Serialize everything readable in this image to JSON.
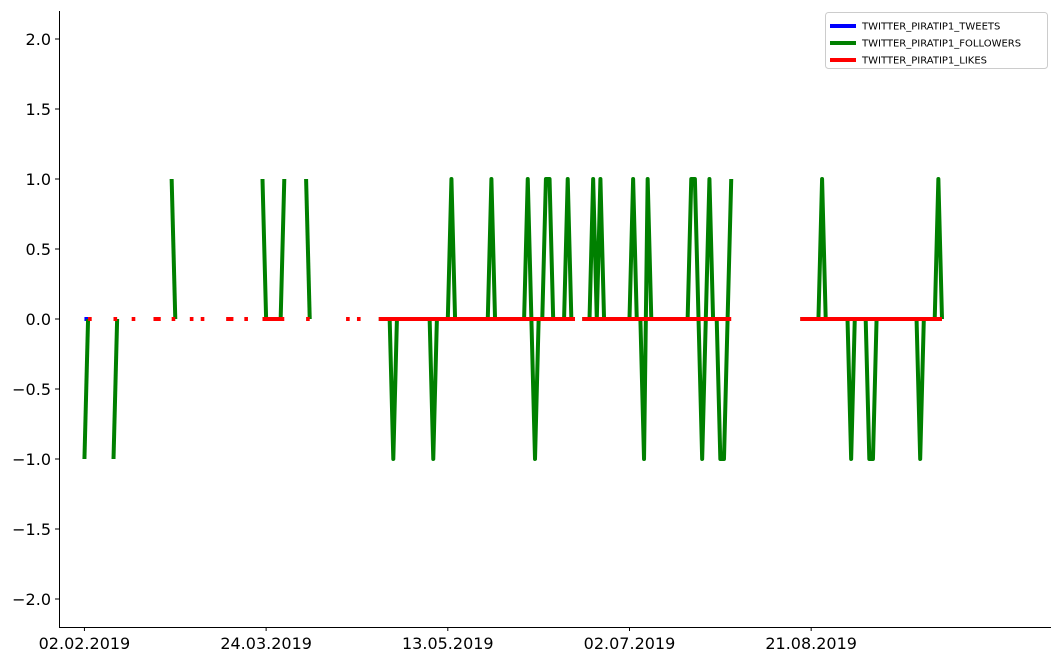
{
  "chart_data": {
    "type": "line",
    "title": "",
    "xlabel": "",
    "ylabel": "",
    "x_start": "2019-02-02",
    "x_end": "2019-09-30",
    "xlim": [
      "2019-01-26",
      "2019-10-26"
    ],
    "ylim": [
      -2.2,
      2.2
    ],
    "grid": false,
    "legend_position": "top-right",
    "x_ticks": [
      {
        "date": "2019-02-02",
        "label": "02.02.2019"
      },
      {
        "date": "2019-03-24",
        "label": "24.03.2019"
      },
      {
        "date": "2019-05-13",
        "label": "13.05.2019"
      },
      {
        "date": "2019-07-02",
        "label": "02.07.2019"
      },
      {
        "date": "2019-08-21",
        "label": "21.08.2019"
      }
    ],
    "y_ticks": [
      {
        "value": 2.0,
        "label": "2.0"
      },
      {
        "value": 1.5,
        "label": "1.5"
      },
      {
        "value": 1.0,
        "label": "1.0"
      },
      {
        "value": 0.5,
        "label": "0.5"
      },
      {
        "value": 0.0,
        "label": "0.0"
      },
      {
        "value": -0.5,
        "label": "−0.5"
      },
      {
        "value": -1.0,
        "label": "−1.0"
      },
      {
        "value": -1.5,
        "label": "−1.5"
      },
      {
        "value": -2.0,
        "label": "−2.0"
      }
    ],
    "series": [
      {
        "name": "TWITTER_PIRATIP1_TWEETS",
        "color": "#0000ff",
        "values": {
          "0": 0,
          "1": 0
        }
      },
      {
        "name": "TWITTER_PIRATIP1_FOLLOWERS",
        "color": "#008000",
        "values": {
          "0": -1,
          "1": 0,
          "8": -1,
          "9": 0,
          "24": 1,
          "25": 0,
          "49": 1,
          "50": 0,
          "51": 0,
          "52": 0,
          "53": 0,
          "54": 0,
          "55": 1,
          "61": 1,
          "62": 0,
          "81": 0,
          "82": 0,
          "83": 0,
          "84": 0,
          "85": -1,
          "86": 0,
          "87": 0,
          "88": 0,
          "89": 0,
          "90": 0,
          "91": 0,
          "92": 0,
          "93": 0,
          "94": 0,
          "95": 0,
          "96": -1,
          "97": 0,
          "98": 0,
          "99": 0,
          "100": 0,
          "101": 1,
          "102": 0,
          "103": 0,
          "104": 0,
          "105": 0,
          "106": 0,
          "107": 0,
          "108": 0,
          "109": 0,
          "110": 0,
          "111": 0,
          "112": 1,
          "113": 0,
          "114": 0,
          "115": 0,
          "116": 0,
          "117": 0,
          "118": 0,
          "119": 0,
          "120": 0,
          "121": 0,
          "122": 1,
          "123": 0,
          "124": -1,
          "125": 0,
          "126": 0,
          "127": 1,
          "128": 1,
          "129": 0,
          "130": 0,
          "131": 0,
          "132": 0,
          "133": 1,
          "134": 0,
          "135": 0,
          "137": 0,
          "138": 0,
          "139": 0,
          "140": 1,
          "141": 0,
          "142": 1,
          "143": 0,
          "144": 0,
          "145": 0,
          "146": 0,
          "147": 0,
          "148": 0,
          "149": 0,
          "150": 0,
          "151": 1,
          "152": 0,
          "153": 0,
          "154": -1,
          "155": 1,
          "156": 0,
          "157": 0,
          "158": 0,
          "159": 0,
          "160": 0,
          "161": 0,
          "162": 0,
          "163": 0,
          "164": 0,
          "165": 0,
          "166": 0,
          "167": 1,
          "168": 1,
          "169": 0,
          "170": -1,
          "171": 0,
          "172": 1,
          "173": 0,
          "174": 0,
          "175": -1,
          "176": -1,
          "177": 0,
          "178": 1,
          "197": 0,
          "198": 0,
          "199": 0,
          "200": 0,
          "201": 0,
          "202": 0,
          "203": 1,
          "204": 0,
          "205": 0,
          "206": 0,
          "207": 0,
          "208": 0,
          "209": 0,
          "210": 0,
          "211": -1,
          "212": 0,
          "213": 0,
          "214": 0,
          "215": 0,
          "216": -1,
          "217": -1,
          "218": 0,
          "219": 0,
          "220": 0,
          "221": 0,
          "222": 0,
          "223": 0,
          "224": 0,
          "225": 0,
          "226": 0,
          "227": 0,
          "228": 0,
          "229": 0,
          "230": -1,
          "231": 0,
          "232": 0,
          "233": 0,
          "234": 0,
          "235": 1,
          "236": 0
        }
      },
      {
        "name": "TWITTER_PIRATIP1_LIKES",
        "color": "#ff0000",
        "values": {
          "1": 0,
          "2": 0,
          "8": 0,
          "9": 0,
          "13": 0,
          "14": 0,
          "19": 0,
          "20": 0,
          "21": 0,
          "24": 0,
          "25": 0,
          "29": 0,
          "30": 0,
          "32": 0,
          "33": 0,
          "39": 0,
          "40": 0,
          "41": 0,
          "44": 0,
          "45": 0,
          "49": 0,
          "50": 0,
          "51": 0,
          "52": 0,
          "53": 0,
          "54": 0,
          "55": 0,
          "61": 0,
          "62": 0,
          "72": 0,
          "73": 0,
          "75": 0,
          "76": 0,
          "81": 0,
          "82": 0,
          "83": 0,
          "84": 0,
          "85": 0,
          "86": 0,
          "87": 0,
          "88": 0,
          "89": 0,
          "90": 0,
          "91": 0,
          "92": 0,
          "93": 0,
          "94": 0,
          "95": 0,
          "96": 0,
          "97": 0,
          "98": 0,
          "99": 0,
          "100": 0,
          "101": 0,
          "102": 0,
          "103": 0,
          "104": 0,
          "105": 0,
          "106": 0,
          "107": 0,
          "108": 0,
          "109": 0,
          "110": 0,
          "111": 0,
          "112": 0,
          "113": 0,
          "114": 0,
          "115": 0,
          "116": 0,
          "117": 0,
          "118": 0,
          "119": 0,
          "120": 0,
          "121": 0,
          "122": 0,
          "123": 0,
          "124": 0,
          "125": 0,
          "126": 0,
          "127": 0,
          "128": 0,
          "129": 0,
          "130": 0,
          "131": 0,
          "132": 0,
          "133": 0,
          "134": 0,
          "135": 0,
          "137": 0,
          "138": 0,
          "139": 0,
          "140": 0,
          "141": 0,
          "142": 0,
          "143": 0,
          "144": 0,
          "145": 0,
          "146": 0,
          "147": 0,
          "148": 0,
          "149": 0,
          "150": 0,
          "151": 0,
          "152": 0,
          "153": 0,
          "154": 0,
          "155": 0,
          "156": 0,
          "157": 0,
          "158": 0,
          "159": 0,
          "160": 0,
          "161": 0,
          "162": 0,
          "163": 0,
          "164": 0,
          "165": 0,
          "166": 0,
          "167": 0,
          "168": 0,
          "169": 0,
          "170": 0,
          "171": 0,
          "172": 0,
          "173": 0,
          "174": 0,
          "175": 0,
          "176": 0,
          "177": 0,
          "178": 0,
          "197": 0,
          "198": 0,
          "199": 0,
          "200": 0,
          "201": 0,
          "202": 0,
          "203": 0,
          "204": 0,
          "205": 0,
          "206": 0,
          "207": 0,
          "208": 0,
          "209": 0,
          "210": 0,
          "211": 0,
          "212": 0,
          "213": 0,
          "214": 0,
          "215": 0,
          "216": 0,
          "217": 0,
          "218": 0,
          "219": 0,
          "220": 0,
          "221": 0,
          "222": 0,
          "223": 0,
          "224": 0,
          "225": 0,
          "226": 0,
          "227": 0,
          "228": 0,
          "229": 0,
          "230": 0,
          "231": 0,
          "232": 0,
          "233": 0,
          "234": 0,
          "235": 0,
          "236": 0
        }
      }
    ]
  }
}
